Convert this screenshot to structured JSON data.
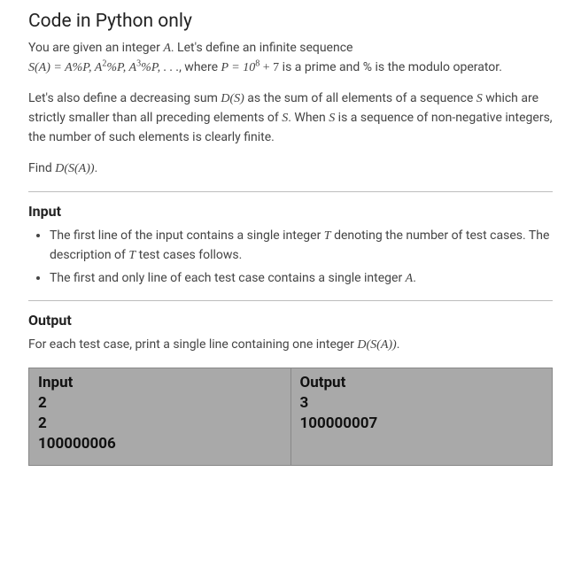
{
  "title": "Code in Python only",
  "para1_prefix": "You are given an integer ",
  "para1_after_A": ". Let's define an infinite sequence",
  "seq_lhs": "S(A) = A%P, A",
  "seq_sup2": "2",
  "seq_mid1": "%P, A",
  "seq_sup3": "3",
  "seq_mid2": "%P, . . .",
  "seq_where": ", where ",
  "seq_P_eq": "P = 10",
  "seq_sup8": "8",
  "seq_plus7": " + 7",
  "seq_tail": " is a prime and % is the modulo operator.",
  "para2_a": "Let's also define a decreasing sum ",
  "para2_DS": "D(S)",
  "para2_b": " as the sum of all elements of a sequence ",
  "para2_S": "S",
  "para2_c": " which are strictly smaller than all preceding elements of ",
  "para2_S2": "S",
  "para2_d": ". When ",
  "para2_S3": "S",
  "para2_e": " is a sequence of non-negative integers, the number of such elements is clearly finite.",
  "para3_a": "Find ",
  "para3_DSA": "D(S(A))",
  "para3_b": ".",
  "input_head": "Input",
  "input_li1_a": "The first line of the input contains a single integer ",
  "input_li1_T": "T",
  "input_li1_b": " denoting the number of test cases. The description of ",
  "input_li1_T2": "T",
  "input_li1_c": " test cases follows.",
  "input_li2_a": "The first and only line of each test case contains a single integer ",
  "input_li2_A": "A",
  "input_li2_b": ".",
  "output_head": "Output",
  "output_para_a": "For each test case, print a single line containing one integer ",
  "output_para_DSA": "D(S(A))",
  "output_para_b": ".",
  "io": {
    "input_label": "Input",
    "output_label": "Output",
    "input_lines": [
      "2",
      "2",
      "100000006"
    ],
    "output_lines": [
      "3",
      "100000007"
    ]
  },
  "colors": {
    "io_bg": "#a9a9a9",
    "io_border": "#888888",
    "text": "#444444",
    "title": "#222222"
  }
}
